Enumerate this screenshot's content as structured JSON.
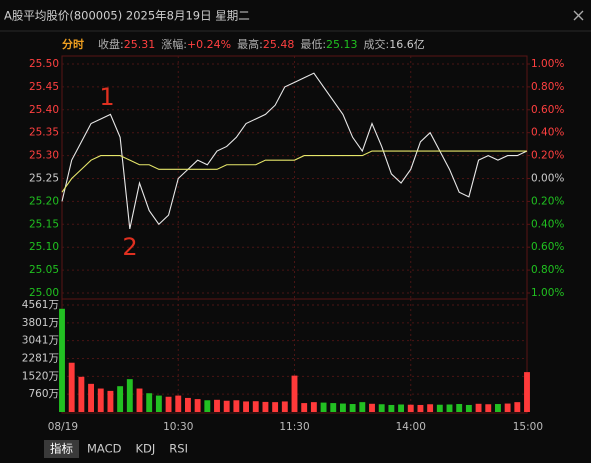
{
  "header": {
    "title": "A股平均股价(800005) 2025年8月19日 星期二",
    "stats": {
      "mode": "分时",
      "items": [
        {
          "label": "收盘:",
          "value": "25.31",
          "color": "#ff4040"
        },
        {
          "label": "涨幅:",
          "value": "+0.24%",
          "color": "#ff4040"
        },
        {
          "label": "最高:",
          "value": "25.48",
          "color": "#ff4040"
        },
        {
          "label": "最低:",
          "value": "25.13",
          "color": "#20c020"
        },
        {
          "label": "成交:",
          "value": "16.6亿",
          "color": "#cccccc"
        }
      ]
    }
  },
  "tabs": [
    "指标",
    "MACD",
    "KDJ",
    "RSI"
  ],
  "chart_data": [
    {
      "type": "line",
      "x": [
        0,
        5,
        10,
        15,
        20,
        25,
        30,
        35,
        40,
        45,
        50,
        55,
        60,
        65,
        70,
        75,
        80,
        85,
        90,
        95,
        100,
        105,
        110,
        115,
        120,
        125,
        130,
        135,
        140,
        145,
        150,
        155,
        160,
        165,
        170,
        175,
        180,
        185,
        190,
        195,
        200,
        205,
        210,
        215,
        220,
        225,
        230,
        235,
        240
      ],
      "series": [
        {
          "color": "#e8e8e8",
          "values": [
            25.2,
            25.29,
            25.33,
            25.37,
            25.38,
            25.39,
            25.34,
            25.14,
            25.24,
            25.18,
            25.15,
            25.17,
            25.25,
            25.27,
            25.29,
            25.28,
            25.31,
            25.32,
            25.34,
            25.37,
            25.38,
            25.39,
            25.41,
            25.45,
            25.46,
            25.47,
            25.48,
            25.45,
            25.42,
            25.39,
            25.34,
            25.31,
            25.37,
            25.32,
            25.26,
            25.24,
            25.27,
            25.33,
            25.35,
            25.31,
            25.27,
            25.22,
            25.21,
            25.29,
            25.3,
            25.29,
            25.3,
            25.3,
            25.31
          ]
        },
        {
          "color": "#e6e66a",
          "values": [
            25.22,
            25.25,
            25.27,
            25.29,
            25.3,
            25.3,
            25.3,
            25.29,
            25.28,
            25.28,
            25.27,
            25.27,
            25.27,
            25.27,
            25.27,
            25.27,
            25.27,
            25.28,
            25.28,
            25.28,
            25.28,
            25.29,
            25.29,
            25.29,
            25.29,
            25.3,
            25.3,
            25.3,
            25.3,
            25.3,
            25.3,
            25.3,
            25.31,
            25.31,
            25.31,
            25.31,
            25.31,
            25.31,
            25.31,
            25.31,
            25.31,
            25.31,
            25.31,
            25.31,
            25.31,
            25.31,
            25.31,
            25.31,
            25.31
          ]
        }
      ],
      "xlim": [
        0,
        240
      ],
      "xticks": [
        {
          "value": 0,
          "label": "08/19"
        },
        {
          "value": 60,
          "label": "10:30"
        },
        {
          "value": 120,
          "label": "11:30"
        },
        {
          "value": 180,
          "label": "14:00"
        },
        {
          "value": 240,
          "label": "15:00"
        }
      ],
      "ylim": [
        25.0,
        25.5
      ],
      "yticks": [
        {
          "value": 25.0,
          "label": "25.00"
        },
        25.05,
        {
          "value": 25.1,
          "label": "25.10"
        },
        25.15,
        {
          "value": 25.2,
          "label": "25.20"
        },
        25.25,
        {
          "value": 25.3,
          "label": "25.30"
        },
        25.35,
        {
          "value": 25.4,
          "label": "25.40"
        },
        25.45,
        {
          "value": 25.5,
          "label": "25.50"
        }
      ],
      "y2lim": [
        -1,
        1
      ],
      "y2ticks": [
        {
          "value": -1,
          "label": "1.00%"
        },
        {
          "value": -0.8,
          "label": "0.80%"
        },
        {
          "value": -0.6,
          "label": "0.60%"
        },
        {
          "value": -0.4,
          "label": "0.40%"
        },
        {
          "value": -0.2,
          "label": "0.20%"
        },
        {
          "value": 0,
          "label": "0.00%"
        },
        {
          "value": 0.2,
          "label": "0.20%"
        },
        {
          "value": 0.4,
          "label": "0.40%"
        },
        {
          "value": 0.6,
          "label": "0.60%"
        },
        {
          "value": 0.8,
          "label": "0.80%"
        },
        {
          "value": 1,
          "label": "1.00%"
        }
      ],
      "annotations": [
        "1",
        "2"
      ],
      "grid": true
    },
    {
      "type": "bar",
      "series": [
        {
          "color": "#ff3a3a",
          "values": [
            null,
            2100,
            1500,
            1200,
            1000,
            900,
            null,
            null,
            1000,
            null,
            null,
            650,
            700,
            600,
            550,
            null,
            520,
            480,
            500,
            450,
            460,
            430,
            420,
            450,
            1550,
            380,
            420,
            null,
            null,
            null,
            null,
            null,
            350,
            null,
            null,
            null,
            310,
            300,
            330,
            null,
            null,
            null,
            null,
            350,
            330,
            null,
            360,
            420,
            1700
          ]
        },
        {
          "color": "#22c022",
          "values": [
            4400,
            null,
            null,
            null,
            null,
            null,
            1100,
            1400,
            null,
            800,
            700,
            null,
            null,
            null,
            null,
            500,
            null,
            null,
            null,
            null,
            null,
            null,
            null,
            null,
            null,
            null,
            null,
            400,
            380,
            360,
            340,
            420,
            null,
            330,
            300,
            320,
            null,
            null,
            null,
            310,
            320,
            340,
            300,
            null,
            null,
            340,
            null,
            null,
            null
          ]
        }
      ],
      "ylim": [
        0,
        4561
      ],
      "yticks": [
        {
          "value": 760,
          "label": "760万"
        },
        {
          "value": 1520,
          "label": "1520万"
        },
        {
          "value": 2281,
          "label": "2281万"
        },
        {
          "value": 3041,
          "label": "3041万"
        },
        {
          "value": 3801,
          "label": "3801万"
        },
        {
          "value": 4561,
          "label": "4561万"
        }
      ],
      "grid": true
    }
  ]
}
